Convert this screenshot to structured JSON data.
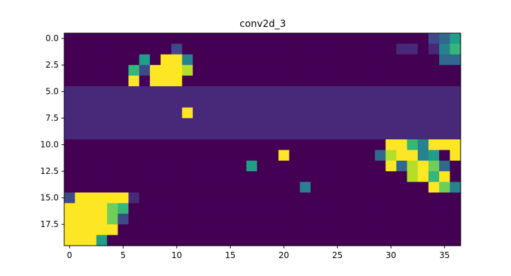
{
  "chart_data": {
    "type": "heatmap",
    "title": "conv2d_3",
    "xlabel": "",
    "ylabel": "",
    "rows": 20,
    "cols": 37,
    "x_ticks": [
      0,
      5,
      10,
      15,
      20,
      25,
      30,
      35
    ],
    "x_tick_labels": [
      "0",
      "5",
      "10",
      "15",
      "20",
      "25",
      "30",
      "35"
    ],
    "y_ticks": [
      0,
      2.5,
      5,
      7.5,
      10,
      12.5,
      15,
      17.5
    ],
    "y_tick_labels": [
      "0.0",
      "2.5",
      "5.0",
      "7.5",
      "10.0",
      "12.5",
      "15.0",
      "17.5"
    ],
    "colormap": [
      "#440154",
      "#482878",
      "#3e4989",
      "#31688e",
      "#26828e",
      "#1f9e89",
      "#35b779",
      "#6ece58",
      "#b5de2b",
      "#fde725"
    ],
    "background": 0.02,
    "row_fill": [
      {
        "rows": [
          0,
          4
        ],
        "value": 0.03
      },
      {
        "rows": [
          5,
          9
        ],
        "value": 0.11
      },
      {
        "rows": [
          10,
          19
        ],
        "value": 0.0
      }
    ],
    "cells": [
      [
        0,
        34,
        0.18
      ],
      [
        0,
        35,
        0.35
      ],
      [
        0,
        36,
        0.6
      ],
      [
        1,
        10,
        0.25
      ],
      [
        1,
        31,
        0.08
      ],
      [
        1,
        32,
        0.08
      ],
      [
        1,
        34,
        0.12
      ],
      [
        1,
        35,
        0.4
      ],
      [
        1,
        36,
        0.62
      ],
      [
        2,
        7,
        0.6
      ],
      [
        2,
        9,
        1.0
      ],
      [
        2,
        10,
        1.0
      ],
      [
        2,
        11,
        0.45
      ],
      [
        2,
        35,
        0.3
      ],
      [
        2,
        36,
        0.3
      ],
      [
        3,
        6,
        0.72
      ],
      [
        3,
        7,
        0.2
      ],
      [
        3,
        8,
        1.0
      ],
      [
        3,
        9,
        1.0
      ],
      [
        3,
        10,
        1.0
      ],
      [
        3,
        11,
        0.85
      ],
      [
        4,
        6,
        1.0
      ],
      [
        4,
        8,
        1.0
      ],
      [
        4,
        9,
        1.0
      ],
      [
        4,
        10,
        1.0
      ],
      [
        7,
        11,
        1.0
      ],
      [
        10,
        30,
        1.0
      ],
      [
        10,
        31,
        1.0
      ],
      [
        10,
        32,
        0.65
      ],
      [
        10,
        33,
        0.45
      ],
      [
        10,
        34,
        1.0
      ],
      [
        10,
        35,
        1.0
      ],
      [
        10,
        36,
        1.0
      ],
      [
        11,
        20,
        1.0
      ],
      [
        11,
        29,
        0.35
      ],
      [
        11,
        30,
        0.85
      ],
      [
        11,
        31,
        1.0
      ],
      [
        11,
        32,
        1.0
      ],
      [
        11,
        33,
        0.4
      ],
      [
        11,
        34,
        0.6
      ],
      [
        11,
        36,
        1.0
      ],
      [
        12,
        17,
        0.55
      ],
      [
        12,
        30,
        1.0
      ],
      [
        12,
        31,
        0.3
      ],
      [
        12,
        32,
        0.85
      ],
      [
        12,
        33,
        1.0
      ],
      [
        12,
        34,
        0.8
      ],
      [
        12,
        35,
        0.3
      ],
      [
        13,
        32,
        0.9
      ],
      [
        13,
        33,
        1.0
      ],
      [
        13,
        34,
        0.7
      ],
      [
        13,
        35,
        1.0
      ],
      [
        14,
        22,
        0.4
      ],
      [
        14,
        34,
        1.0
      ],
      [
        14,
        35,
        0.75
      ],
      [
        14,
        36,
        0.4
      ],
      [
        15,
        0,
        0.2
      ],
      [
        15,
        1,
        0.95
      ],
      [
        15,
        2,
        1.0
      ],
      [
        15,
        3,
        1.0
      ],
      [
        15,
        4,
        1.0
      ],
      [
        15,
        5,
        1.0
      ],
      [
        15,
        6,
        0.12
      ],
      [
        16,
        0,
        1.0
      ],
      [
        16,
        1,
        1.0
      ],
      [
        16,
        2,
        1.0
      ],
      [
        16,
        3,
        1.0
      ],
      [
        16,
        4,
        0.75
      ],
      [
        16,
        5,
        0.7
      ],
      [
        17,
        0,
        1.0
      ],
      [
        17,
        1,
        1.0
      ],
      [
        17,
        2,
        1.0
      ],
      [
        17,
        3,
        1.0
      ],
      [
        17,
        4,
        0.75
      ],
      [
        17,
        5,
        0.2
      ],
      [
        18,
        0,
        1.0
      ],
      [
        18,
        1,
        1.0
      ],
      [
        18,
        2,
        1.0
      ],
      [
        18,
        3,
        1.0
      ],
      [
        18,
        4,
        1.0
      ],
      [
        19,
        0,
        0.95
      ],
      [
        19,
        1,
        1.0
      ],
      [
        19,
        2,
        1.0
      ],
      [
        19,
        3,
        0.5
      ]
    ]
  }
}
